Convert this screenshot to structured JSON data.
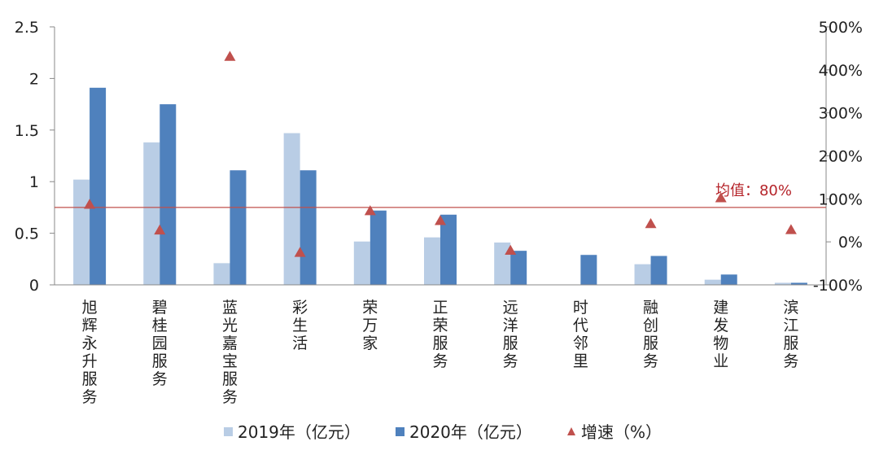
{
  "chart_data": {
    "type": "bar",
    "categories": [
      "旭辉永升服务",
      "碧桂园服务",
      "蓝光嘉宝服务",
      "彩生活",
      "荣万家",
      "正荣服务",
      "远洋服务",
      "时代邻里",
      "融创服务",
      "建发物业",
      "滨江服务"
    ],
    "series": [
      {
        "name": "2019年（亿元）",
        "type": "bar",
        "axis": "left",
        "color": "#b9cde5",
        "values": [
          1.02,
          1.38,
          0.21,
          1.47,
          0.42,
          0.46,
          0.41,
          0,
          0.2,
          0.05,
          0.02
        ]
      },
      {
        "name": "2020年（亿元）",
        "type": "bar",
        "axis": "left",
        "color": "#4f81bd",
        "values": [
          1.91,
          1.75,
          1.11,
          1.11,
          0.72,
          0.68,
          0.33,
          0.29,
          0.28,
          0.1,
          0.02
        ]
      },
      {
        "name": "增速（%）",
        "type": "scatter",
        "axis": "right",
        "color": "#c0504d",
        "marker": "triangle",
        "values": [
          87,
          27,
          431,
          -25,
          72,
          49,
          -20,
          null,
          42,
          102,
          28
        ]
      }
    ],
    "y_left": {
      "min": 0,
      "max": 2.5,
      "ticks": [
        "0",
        "0.5",
        "1",
        "1.5",
        "2",
        "2.5"
      ]
    },
    "y_right": {
      "min": -100,
      "max": 500,
      "ticks": [
        "-100%",
        "0%",
        "100%",
        "200%",
        "300%",
        "400%",
        "500%"
      ]
    },
    "reference_line": {
      "value": 80,
      "axis": "right",
      "label": "均值：80%",
      "color": "#c0504d"
    },
    "legend_position": "bottom"
  }
}
